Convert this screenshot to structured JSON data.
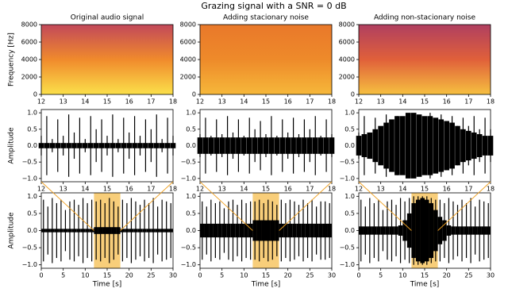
{
  "title": "Grazing signal with a SNR = 0 dB",
  "chart_data": [
    {
      "type": "spectrogram",
      "title": "Original audio signal",
      "ylabel": "Frequency [Hz]",
      "xlim": [
        12,
        18
      ],
      "xticks": [
        12,
        13,
        14,
        15,
        16,
        17,
        18
      ],
      "ylim": [
        0,
        8000
      ],
      "yticks": [
        0,
        2000,
        4000,
        6000,
        8000
      ],
      "colors": [
        "#fbe04a",
        "#f08a2c",
        "#c2485a"
      ]
    },
    {
      "type": "spectrogram",
      "title": "Adding stacionary noise",
      "xlim": [
        12,
        18
      ],
      "xticks": [
        12,
        13,
        14,
        15,
        16,
        17,
        18
      ],
      "ylim": [
        0,
        8000
      ],
      "yticks": [
        0,
        2000,
        4000,
        6000,
        8000
      ],
      "colors": [
        "#f6b83a",
        "#ee8a2a",
        "#e9782a"
      ]
    },
    {
      "type": "spectrogram",
      "title": "Adding non-stacionary noise",
      "xlim": [
        12,
        18
      ],
      "xticks": [
        12,
        13,
        14,
        15,
        16,
        17,
        18
      ],
      "ylim": [
        0,
        8000
      ],
      "yticks": [
        0,
        2000,
        4000,
        6000,
        8000
      ],
      "colors": [
        "#f6c040",
        "#e0603a",
        "#b03f60"
      ]
    },
    {
      "type": "waveform",
      "ylabel": "Amplitude",
      "xlim": [
        12,
        18
      ],
      "xticks": [
        12,
        13,
        14,
        15,
        16,
        17,
        18
      ],
      "ylim": [
        -1.1,
        1.1
      ],
      "yticks": [
        {
          "value": -1,
          "label": "−1.0"
        },
        {
          "value": -0.5,
          "label": "−0.5"
        },
        {
          "value": 0,
          "label": "0.0"
        },
        {
          "value": 0.5,
          "label": "0.5"
        },
        {
          "value": 1,
          "label": "1.0"
        }
      ],
      "color": "#000000",
      "x": [
        12,
        12.25,
        12.5,
        12.75,
        13,
        13.25,
        13.5,
        13.75,
        14,
        14.25,
        14.5,
        14.75,
        15,
        15.25,
        15.5,
        15.75,
        16,
        16.25,
        16.5,
        16.75,
        17,
        17.25,
        17.5,
        17.75,
        18
      ],
      "values": [
        0.3,
        0.9,
        0.2,
        0.8,
        0.3,
        0.95,
        0.4,
        0.85,
        0.2,
        0.9,
        0.5,
        0.8,
        0.3,
        0.95,
        0.2,
        0.85,
        0.4,
        0.9,
        0.3,
        0.8,
        0.5,
        0.95,
        0.2,
        0.85,
        0.3
      ],
      "noise": [
        0.08,
        0.08,
        0.08,
        0.08,
        0.08,
        0.08,
        0.08,
        0.08,
        0.08,
        0.08,
        0.08,
        0.08,
        0.08,
        0.08,
        0.08,
        0.08,
        0.08,
        0.08,
        0.08,
        0.08,
        0.08,
        0.08,
        0.08,
        0.08,
        0.08
      ]
    },
    {
      "type": "waveform",
      "xlim": [
        12,
        18
      ],
      "xticks": [
        12,
        13,
        14,
        15,
        16,
        17,
        18
      ],
      "ylim": [
        -1.1,
        1.1
      ],
      "yticks": [
        {
          "value": -1,
          "label": "−1.0"
        },
        {
          "value": -0.5,
          "label": "−0.5"
        },
        {
          "value": 0,
          "label": "0.0"
        },
        {
          "value": 0.5,
          "label": "0.5"
        },
        {
          "value": 1,
          "label": "1.0"
        }
      ],
      "color": "#000000",
      "x": [
        12,
        12.25,
        12.5,
        12.75,
        13,
        13.25,
        13.5,
        13.75,
        14,
        14.25,
        14.5,
        14.75,
        15,
        15.25,
        15.5,
        15.75,
        16,
        16.25,
        16.5,
        16.75,
        17,
        17.25,
        17.5,
        17.75,
        18
      ],
      "values": [
        0.35,
        0.85,
        0.3,
        0.8,
        0.35,
        0.9,
        0.4,
        0.8,
        0.3,
        0.85,
        0.5,
        0.75,
        0.35,
        0.9,
        0.3,
        0.8,
        0.4,
        0.85,
        0.35,
        0.8,
        0.5,
        0.9,
        0.3,
        0.8,
        0.35
      ],
      "noise": [
        0.25,
        0.25,
        0.25,
        0.25,
        0.25,
        0.25,
        0.25,
        0.25,
        0.25,
        0.25,
        0.25,
        0.25,
        0.25,
        0.25,
        0.25,
        0.25,
        0.25,
        0.25,
        0.25,
        0.25,
        0.25,
        0.25,
        0.25,
        0.25,
        0.25
      ]
    },
    {
      "type": "waveform",
      "xlim": [
        12,
        18
      ],
      "xticks": [
        12,
        13,
        14,
        15,
        16,
        17,
        18
      ],
      "ylim": [
        -1.1,
        1.1
      ],
      "yticks": [
        {
          "value": -1,
          "label": "−1.0"
        },
        {
          "value": -0.5,
          "label": "−0.5"
        },
        {
          "value": 0,
          "label": "0.0"
        },
        {
          "value": 0.5,
          "label": "0.5"
        },
        {
          "value": 1,
          "label": "1.0"
        }
      ],
      "color": "#000000",
      "x": [
        12,
        12.25,
        12.5,
        12.75,
        13,
        13.25,
        13.5,
        13.75,
        14,
        14.25,
        14.5,
        14.75,
        15,
        15.25,
        15.5,
        15.75,
        16,
        16.25,
        16.5,
        16.75,
        17,
        17.25,
        17.5,
        17.75,
        18
      ],
      "values": [
        0.4,
        0.9,
        0.4,
        0.85,
        0.5,
        0.95,
        0.6,
        0.9,
        0.5,
        0.95,
        0.7,
        0.9,
        0.6,
        1.0,
        0.6,
        0.95,
        0.7,
        0.9,
        0.6,
        0.85,
        0.6,
        0.9,
        0.5,
        0.85,
        0.5
      ],
      "noise": [
        0.3,
        0.35,
        0.4,
        0.5,
        0.6,
        0.7,
        0.8,
        0.9,
        0.9,
        1.0,
        1.0,
        0.95,
        0.9,
        0.9,
        0.85,
        0.8,
        0.75,
        0.7,
        0.6,
        0.5,
        0.45,
        0.4,
        0.35,
        0.3,
        0.3
      ]
    },
    {
      "type": "waveform",
      "ylabel": "Amplitude",
      "xlabel": "Time [s]",
      "xlim": [
        0,
        30
      ],
      "xticks": [
        0,
        5,
        10,
        15,
        20,
        25,
        30
      ],
      "ylim": [
        -1.1,
        1.1
      ],
      "yticks": [
        {
          "value": -1,
          "label": "−1.0"
        },
        {
          "value": -0.5,
          "label": "−0.5"
        },
        {
          "value": 0,
          "label": "0.0"
        },
        {
          "value": 0.5,
          "label": "0.5"
        },
        {
          "value": 1,
          "label": "1.0"
        }
      ],
      "color": "#000000",
      "highlight": [
        12,
        18
      ],
      "highlight_color": "#f5b942",
      "x": [
        0.5,
        1.5,
        2.5,
        3.5,
        4.5,
        5.5,
        6.5,
        7.5,
        8.5,
        9.5,
        10.5,
        11.5,
        12.5,
        13.5,
        14.5,
        15.5,
        16.5,
        17.5,
        18.5,
        19.5,
        20.5,
        21.5,
        22.5,
        23.5,
        24.5,
        25.5,
        26.5,
        27.5,
        28.5,
        29.5
      ],
      "values": [
        0.9,
        0.7,
        0.95,
        0.8,
        0.9,
        0.6,
        0.85,
        0.9,
        0.75,
        0.95,
        0.8,
        0.9,
        0.85,
        0.9,
        0.8,
        0.95,
        0.85,
        0.7,
        0.9,
        0.8,
        0.95,
        0.85,
        0.75,
        0.9,
        0.8,
        0.95,
        0.7,
        0.9,
        0.85,
        0.8
      ],
      "noise": [
        0.05,
        0.05,
        0.05,
        0.05,
        0.05,
        0.05,
        0.05,
        0.05,
        0.05,
        0.05,
        0.05,
        0.05,
        0.1,
        0.1,
        0.1,
        0.1,
        0.1,
        0.1,
        0.05,
        0.05,
        0.05,
        0.05,
        0.05,
        0.05,
        0.05,
        0.05,
        0.05,
        0.05,
        0.05,
        0.05
      ]
    },
    {
      "type": "waveform",
      "xlabel": "Time [s]",
      "xlim": [
        0,
        30
      ],
      "xticks": [
        0,
        5,
        10,
        15,
        20,
        25,
        30
      ],
      "ylim": [
        -1.1,
        1.1
      ],
      "yticks": [
        {
          "value": -1,
          "label": "−1.0"
        },
        {
          "value": -0.5,
          "label": "−0.5"
        },
        {
          "value": 0,
          "label": "0.0"
        },
        {
          "value": 0.5,
          "label": "0.5"
        },
        {
          "value": 1,
          "label": "1.0"
        }
      ],
      "color": "#000000",
      "highlight": [
        12,
        18
      ],
      "highlight_color": "#f5b942",
      "x": [
        0.5,
        1.5,
        2.5,
        3.5,
        4.5,
        5.5,
        6.5,
        7.5,
        8.5,
        9.5,
        10.5,
        11.5,
        12.5,
        13.5,
        14.5,
        15.5,
        16.5,
        17.5,
        18.5,
        19.5,
        20.5,
        21.5,
        22.5,
        23.5,
        24.5,
        25.5,
        26.5,
        27.5,
        28.5,
        29.5
      ],
      "values": [
        0.85,
        0.7,
        0.9,
        0.8,
        0.85,
        0.65,
        0.85,
        0.9,
        0.75,
        0.9,
        0.8,
        0.85,
        0.85,
        0.9,
        0.8,
        0.9,
        0.85,
        0.75,
        0.9,
        0.8,
        0.9,
        0.85,
        0.75,
        0.9,
        0.8,
        0.9,
        0.7,
        0.85,
        0.85,
        0.8
      ],
      "noise": [
        0.2,
        0.2,
        0.2,
        0.2,
        0.2,
        0.2,
        0.2,
        0.2,
        0.2,
        0.2,
        0.2,
        0.2,
        0.3,
        0.3,
        0.3,
        0.3,
        0.3,
        0.3,
        0.2,
        0.2,
        0.2,
        0.2,
        0.2,
        0.2,
        0.2,
        0.2,
        0.2,
        0.2,
        0.2,
        0.2
      ]
    },
    {
      "type": "waveform",
      "xlabel": "Time [s]",
      "xlim": [
        0,
        30
      ],
      "xticks": [
        0,
        5,
        10,
        15,
        20,
        25,
        30
      ],
      "ylim": [
        -1.1,
        1.1
      ],
      "yticks": [
        {
          "value": -1,
          "label": "−1.0"
        },
        {
          "value": -0.5,
          "label": "−0.5"
        },
        {
          "value": 0,
          "label": "0.0"
        },
        {
          "value": 0.5,
          "label": "0.5"
        },
        {
          "value": 1,
          "label": "1.0"
        }
      ],
      "color": "#000000",
      "highlight": [
        12,
        18
      ],
      "highlight_color": "#f5b942",
      "x": [
        0.5,
        1.5,
        2.5,
        3.5,
        4.5,
        5.5,
        6.5,
        7.5,
        8.5,
        9.5,
        10.5,
        11.5,
        12.5,
        13.5,
        14.5,
        15.5,
        16.5,
        17.5,
        18.5,
        19.5,
        20.5,
        21.5,
        22.5,
        23.5,
        24.5,
        25.5,
        26.5,
        27.5,
        28.5,
        29.5
      ],
      "values": [
        0.9,
        0.7,
        0.95,
        0.8,
        0.9,
        0.6,
        0.85,
        0.9,
        0.75,
        0.95,
        0.85,
        0.95,
        1.0,
        1.0,
        1.0,
        1.0,
        0.95,
        0.9,
        0.9,
        0.8,
        0.95,
        0.85,
        0.75,
        0.9,
        0.8,
        0.95,
        0.7,
        0.9,
        0.85,
        0.8
      ],
      "noise": [
        0.12,
        0.12,
        0.12,
        0.12,
        0.12,
        0.12,
        0.12,
        0.12,
        0.12,
        0.15,
        0.3,
        0.5,
        0.8,
        0.9,
        0.95,
        0.9,
        0.8,
        0.6,
        0.4,
        0.3,
        0.15,
        0.12,
        0.12,
        0.12,
        0.12,
        0.12,
        0.12,
        0.12,
        0.12,
        0.12
      ]
    }
  ]
}
